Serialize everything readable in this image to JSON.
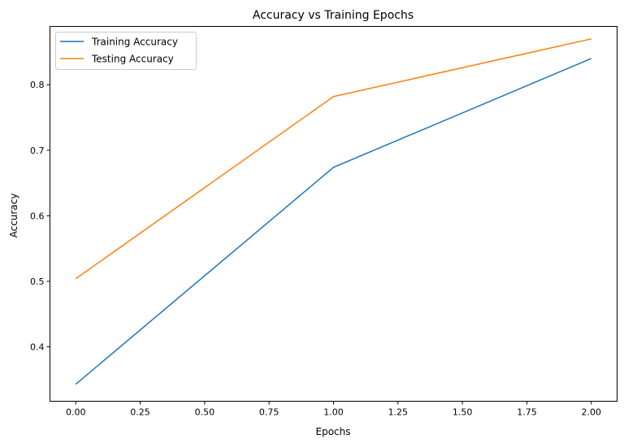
{
  "chart_data": {
    "type": "line",
    "title": "Accuracy vs Training Epochs",
    "xlabel": "Epochs",
    "ylabel": "Accuracy",
    "x": [
      0,
      1,
      2
    ],
    "series": [
      {
        "name": "Training Accuracy",
        "values": [
          0.343,
          0.674,
          0.84
        ],
        "color": "#1f77b4"
      },
      {
        "name": "Testing Accuracy",
        "values": [
          0.504,
          0.782,
          0.87
        ],
        "color": "#ff7f0e"
      }
    ],
    "xlim": [
      -0.1,
      2.1
    ],
    "ylim": [
      0.317,
      0.889
    ],
    "xticks": [
      "0.00",
      "0.25",
      "0.50",
      "0.75",
      "1.00",
      "1.25",
      "1.50",
      "1.75",
      "2.00"
    ],
    "yticks": [
      "0.4",
      "0.5",
      "0.6",
      "0.7",
      "0.8"
    ],
    "grid": false,
    "legend": "top-left"
  }
}
